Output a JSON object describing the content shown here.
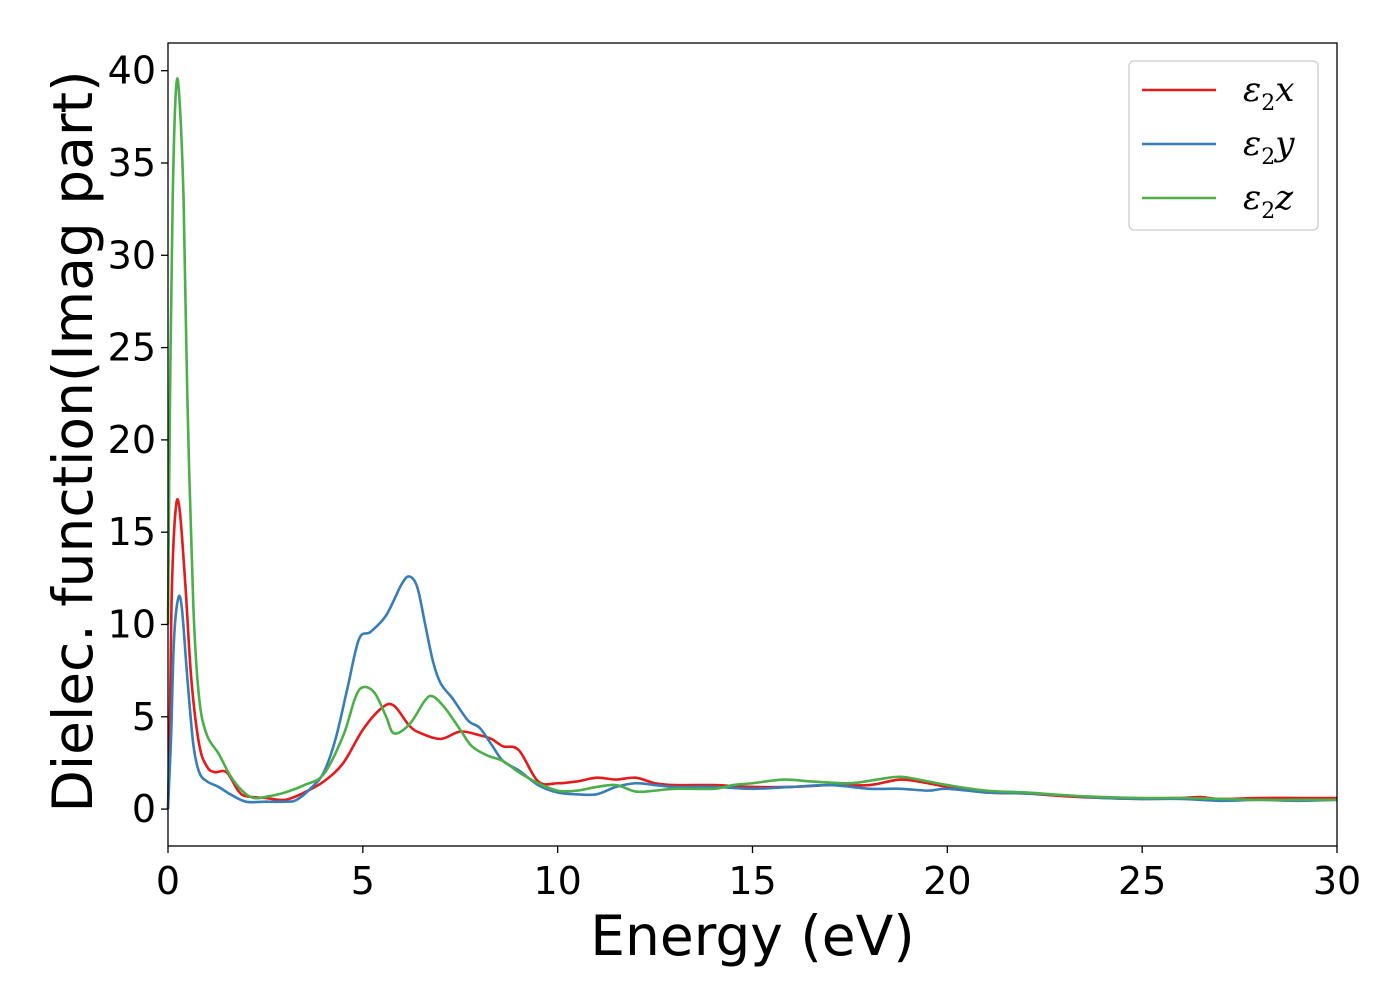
{
  "chart_data": {
    "type": "line",
    "title": "",
    "xlabel": "Energy (eV)",
    "ylabel": "Dielec. function(Imag part)",
    "xlim": [
      0,
      30
    ],
    "ylim": [
      -2,
      41.5
    ],
    "xticks": [
      0,
      5,
      10,
      15,
      20,
      25,
      30
    ],
    "yticks": [
      0,
      5,
      10,
      15,
      20,
      25,
      30,
      35,
      40
    ],
    "grid": false,
    "legend_position": "top-right",
    "series": [
      {
        "name": "ε2x",
        "name_base": "ε",
        "name_sub": "2",
        "name_var": "x",
        "color": "#e41a1c",
        "points": [
          [
            0,
            0
          ],
          [
            0.05,
            5
          ],
          [
            0.1,
            12
          ],
          [
            0.2,
            16.3
          ],
          [
            0.3,
            16.2
          ],
          [
            0.45,
            12
          ],
          [
            0.6,
            7
          ],
          [
            0.8,
            3.5
          ],
          [
            1.0,
            2.3
          ],
          [
            1.2,
            2.0
          ],
          [
            1.5,
            2.0
          ],
          [
            1.8,
            1.0
          ],
          [
            2.0,
            0.7
          ],
          [
            2.5,
            0.6
          ],
          [
            3.0,
            0.5
          ],
          [
            3.5,
            0.9
          ],
          [
            4.0,
            1.5
          ],
          [
            4.5,
            2.5
          ],
          [
            5.0,
            4.3
          ],
          [
            5.5,
            5.5
          ],
          [
            5.8,
            5.6
          ],
          [
            6.2,
            4.5
          ],
          [
            6.5,
            4.1
          ],
          [
            7.0,
            3.8
          ],
          [
            7.5,
            4.2
          ],
          [
            8.0,
            4.0
          ],
          [
            8.3,
            3.8
          ],
          [
            8.6,
            3.4
          ],
          [
            9.0,
            3.2
          ],
          [
            9.5,
            1.5
          ],
          [
            10.0,
            1.4
          ],
          [
            10.5,
            1.5
          ],
          [
            11,
            1.7
          ],
          [
            11.5,
            1.6
          ],
          [
            12,
            1.7
          ],
          [
            12.5,
            1.4
          ],
          [
            13,
            1.3
          ],
          [
            14,
            1.3
          ],
          [
            15,
            1.2
          ],
          [
            16,
            1.2
          ],
          [
            17,
            1.3
          ],
          [
            18,
            1.3
          ],
          [
            18.8,
            1.6
          ],
          [
            19.5,
            1.4
          ],
          [
            20,
            1.2
          ],
          [
            21,
            0.9
          ],
          [
            22,
            0.85
          ],
          [
            23,
            0.7
          ],
          [
            24,
            0.6
          ],
          [
            25,
            0.55
          ],
          [
            26,
            0.6
          ],
          [
            26.5,
            0.65
          ],
          [
            27,
            0.55
          ],
          [
            28,
            0.6
          ],
          [
            29,
            0.6
          ],
          [
            30,
            0.6
          ]
        ]
      },
      {
        "name": "ε2y",
        "name_base": "ε",
        "name_sub": "2",
        "name_var": "y",
        "color": "#377eb8",
        "points": [
          [
            0,
            0
          ],
          [
            0.08,
            4
          ],
          [
            0.15,
            9
          ],
          [
            0.25,
            11.3
          ],
          [
            0.35,
            11.0
          ],
          [
            0.5,
            7
          ],
          [
            0.65,
            3.5
          ],
          [
            0.8,
            2.0
          ],
          [
            1.0,
            1.5
          ],
          [
            1.3,
            1.2
          ],
          [
            1.6,
            0.8
          ],
          [
            2.0,
            0.4
          ],
          [
            2.5,
            0.4
          ],
          [
            3.0,
            0.4
          ],
          [
            3.3,
            0.5
          ],
          [
            3.7,
            1.2
          ],
          [
            4.0,
            2.0
          ],
          [
            4.3,
            3.8
          ],
          [
            4.6,
            6.5
          ],
          [
            4.9,
            9.2
          ],
          [
            5.2,
            9.6
          ],
          [
            5.6,
            10.5
          ],
          [
            6.0,
            12.2
          ],
          [
            6.2,
            12.6
          ],
          [
            6.4,
            12.0
          ],
          [
            6.6,
            10.0
          ],
          [
            6.8,
            8.0
          ],
          [
            7.0,
            6.8
          ],
          [
            7.3,
            6.0
          ],
          [
            7.7,
            4.8
          ],
          [
            8.0,
            4.4
          ],
          [
            8.3,
            3.5
          ],
          [
            8.6,
            2.6
          ],
          [
            9.0,
            2.1
          ],
          [
            9.5,
            1.3
          ],
          [
            10.0,
            0.9
          ],
          [
            10.5,
            0.8
          ],
          [
            11.0,
            0.8
          ],
          [
            11.5,
            1.2
          ],
          [
            12.0,
            1.4
          ],
          [
            12.5,
            1.3
          ],
          [
            13,
            1.2
          ],
          [
            14,
            1.2
          ],
          [
            15,
            1.1
          ],
          [
            16,
            1.2
          ],
          [
            17,
            1.3
          ],
          [
            18,
            1.1
          ],
          [
            18.8,
            1.1
          ],
          [
            19.5,
            1.0
          ],
          [
            20,
            1.1
          ],
          [
            21,
            0.9
          ],
          [
            22,
            0.85
          ],
          [
            23,
            0.75
          ],
          [
            24,
            0.6
          ],
          [
            25,
            0.55
          ],
          [
            26,
            0.55
          ],
          [
            27,
            0.45
          ],
          [
            28,
            0.5
          ],
          [
            29,
            0.45
          ],
          [
            30,
            0.5
          ]
        ]
      },
      {
        "name": "ε2z",
        "name_base": "ε",
        "name_sub": "2",
        "name_var": "z",
        "color": "#4daf4a",
        "points": [
          [
            0,
            10
          ],
          [
            0.05,
            22
          ],
          [
            0.12,
            33
          ],
          [
            0.2,
            38.8
          ],
          [
            0.28,
            38.9
          ],
          [
            0.4,
            33
          ],
          [
            0.5,
            22
          ],
          [
            0.65,
            11
          ],
          [
            0.8,
            6
          ],
          [
            1.0,
            4.0
          ],
          [
            1.3,
            3.0
          ],
          [
            1.6,
            1.8
          ],
          [
            1.9,
            1.0
          ],
          [
            2.2,
            0.6
          ],
          [
            2.6,
            0.7
          ],
          [
            3.0,
            0.9
          ],
          [
            3.5,
            1.3
          ],
          [
            4.0,
            1.9
          ],
          [
            4.5,
            4.0
          ],
          [
            4.8,
            6.0
          ],
          [
            5.0,
            6.6
          ],
          [
            5.3,
            6.3
          ],
          [
            5.6,
            5.0
          ],
          [
            5.8,
            4.1
          ],
          [
            6.2,
            4.6
          ],
          [
            6.6,
            5.9
          ],
          [
            6.8,
            6.1
          ],
          [
            7.1,
            5.5
          ],
          [
            7.5,
            4.3
          ],
          [
            7.8,
            3.4
          ],
          [
            8.2,
            2.9
          ],
          [
            8.6,
            2.6
          ],
          [
            9.0,
            2.0
          ],
          [
            9.5,
            1.4
          ],
          [
            10.0,
            1.0
          ],
          [
            10.5,
            1.0
          ],
          [
            11.0,
            1.2
          ],
          [
            11.5,
            1.3
          ],
          [
            12.0,
            0.95
          ],
          [
            12.5,
            1.0
          ],
          [
            13,
            1.1
          ],
          [
            14,
            1.1
          ],
          [
            14.5,
            1.3
          ],
          [
            15,
            1.4
          ],
          [
            15.8,
            1.6
          ],
          [
            16.5,
            1.5
          ],
          [
            17.5,
            1.4
          ],
          [
            18.2,
            1.6
          ],
          [
            18.8,
            1.75
          ],
          [
            19.5,
            1.5
          ],
          [
            20,
            1.3
          ],
          [
            21,
            1.0
          ],
          [
            22,
            0.9
          ],
          [
            23,
            0.75
          ],
          [
            24,
            0.65
          ],
          [
            25,
            0.6
          ],
          [
            26,
            0.6
          ],
          [
            27,
            0.55
          ],
          [
            28,
            0.5
          ],
          [
            29,
            0.5
          ],
          [
            30,
            0.5
          ]
        ]
      }
    ]
  }
}
